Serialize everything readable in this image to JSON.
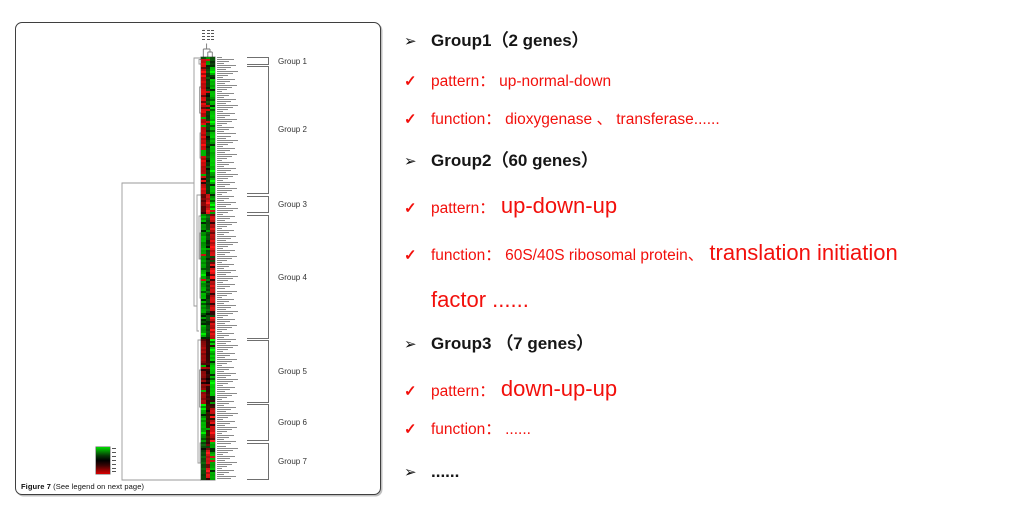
{
  "figure": {
    "caption": {
      "prefix": "Figure 7",
      "text": " (See legend on next page)"
    },
    "legend_colors": {
      "top": "#00dc00",
      "mid": "#000000",
      "bottom": "#dc0000"
    },
    "groups": [
      {
        "label": "Group 1",
        "rows": 4,
        "cols": [
          "#d01010",
          "#00b400",
          "#0a500a"
        ]
      },
      {
        "label": "Group 2",
        "rows": 64,
        "cols": [
          "#c80c0c",
          "#0a3c0a",
          "#00b400"
        ]
      },
      {
        "label": "Group 3",
        "rows": 10,
        "cols": [
          "#5a0505",
          "#c81414",
          "#00a800"
        ]
      },
      {
        "label": "Group 4",
        "rows": 62,
        "cols": [
          "#00a000",
          "#0a4b0a",
          "#c81010"
        ]
      },
      {
        "label": "Group 5",
        "rows": 32,
        "cols": [
          "#960a0a",
          "#320505",
          "#00b400"
        ]
      },
      {
        "label": "Group 6",
        "rows": 19,
        "cols": [
          "#00a000",
          "#321400",
          "#c81010"
        ]
      },
      {
        "label": "Group 7",
        "rows": 19,
        "cols": [
          "#0a460a",
          "#c81414",
          "#00aa00"
        ]
      }
    ]
  },
  "notes": {
    "red": "#f2100c",
    "items": [
      {
        "bullet": "arrow",
        "parts": [
          {
            "text": "Group1（2 genes）",
            "style": "head"
          }
        ]
      },
      {
        "bullet": "check",
        "parts": [
          {
            "text": "pattern：",
            "style": "sm"
          },
          {
            "text": " up-normal-down",
            "style": "sm"
          }
        ]
      },
      {
        "bullet": "check",
        "parts": [
          {
            "text": "function：",
            "style": "sm"
          },
          {
            "text": " dioxygenase 、 transferase......",
            "style": "sm"
          }
        ]
      },
      {
        "bullet": "arrow",
        "parts": [
          {
            "text": "Group2（60 genes）",
            "style": "head"
          }
        ]
      },
      {
        "bullet": "check",
        "parts": [
          {
            "text": "pattern：",
            "style": "sm"
          },
          {
            "text": " up-down-up",
            "style": "lg"
          }
        ]
      },
      {
        "bullet": "check",
        "parts": [
          {
            "text": "function：",
            "style": "sm"
          },
          {
            "text": " 60S/40S ribosomal protein、",
            "style": "sm"
          },
          {
            "text": " translation initiation",
            "style": "lg"
          }
        ]
      },
      {
        "bullet": "none",
        "parts": [
          {
            "text": "factor ......",
            "style": "lg"
          }
        ]
      },
      {
        "bullet": "arrow",
        "parts": [
          {
            "text": "Group3 （7 genes）",
            "style": "head"
          }
        ]
      },
      {
        "bullet": "check",
        "parts": [
          {
            "text": "pattern：",
            "style": "sm"
          },
          {
            "text": " down-up-up",
            "style": "lg"
          }
        ]
      },
      {
        "bullet": "check",
        "parts": [
          {
            "text": "function：",
            "style": "sm"
          },
          {
            "text": " ......",
            "style": "sm"
          }
        ]
      },
      {
        "bullet": "arrow",
        "parts": [
          {
            "text": "......",
            "style": "head"
          }
        ]
      }
    ]
  }
}
